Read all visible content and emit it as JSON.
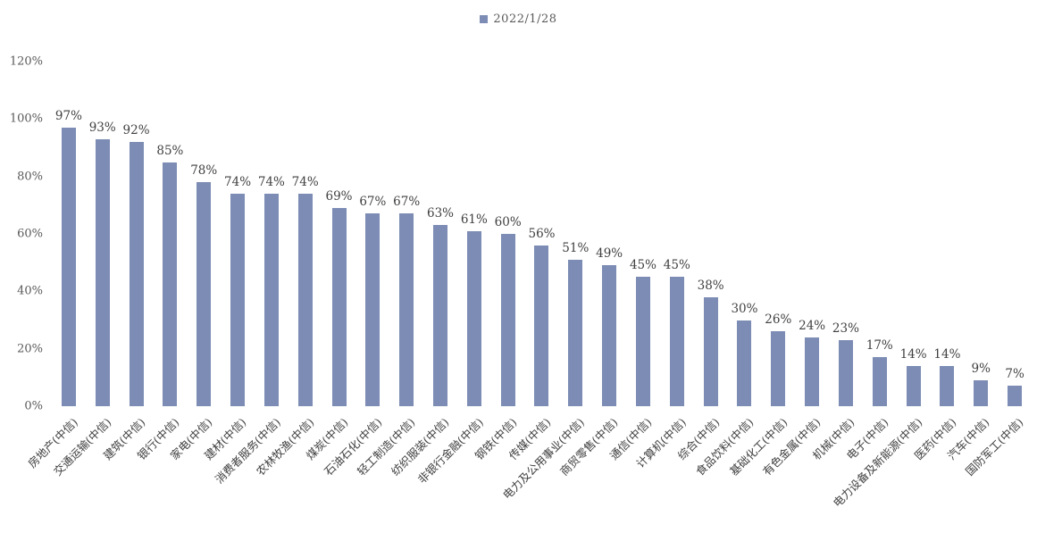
{
  "chart_data": {
    "type": "bar",
    "title": "",
    "legend": [
      "2022/1/28"
    ],
    "legend_position": "top-center",
    "bar_color": "#7C8CB4",
    "label_color": "#404040",
    "axis_color": "#595959",
    "grid": false,
    "value_suffix": "%",
    "ylim": [
      0,
      120
    ],
    "ytick_values": [
      0,
      20,
      40,
      60,
      80,
      100,
      120
    ],
    "ytick_labels": [
      "0%",
      "20%",
      "40%",
      "60%",
      "80%",
      "100%",
      "120%"
    ],
    "categories": [
      "房地产(中信)",
      "交通运输(中信)",
      "建筑(中信)",
      "银行(中信)",
      "家电(中信)",
      "建材(中信)",
      "消费者服务(中信)",
      "农林牧渔(中信)",
      "煤炭(中信)",
      "石油石化(中信)",
      "轻工制造(中信)",
      "纺织服装(中信)",
      "非银行金融(中信)",
      "钢铁(中信)",
      "传媒(中信)",
      "电力及公用事业(中信)",
      "商贸零售(中信)",
      "通信(中信)",
      "计算机(中信)",
      "综合(中信)",
      "食品饮料(中信)",
      "基础化工(中信)",
      "有色金属(中信)",
      "机械(中信)",
      "电子(中信)",
      "电力设备及新能源(中信)",
      "医药(中信)",
      "汽车(中信)",
      "国防军工(中信)"
    ],
    "values": [
      97,
      93,
      92,
      85,
      78,
      74,
      74,
      74,
      69,
      67,
      67,
      63,
      61,
      60,
      56,
      51,
      49,
      45,
      45,
      38,
      30,
      26,
      24,
      23,
      17,
      14,
      14,
      9,
      7
    ]
  }
}
